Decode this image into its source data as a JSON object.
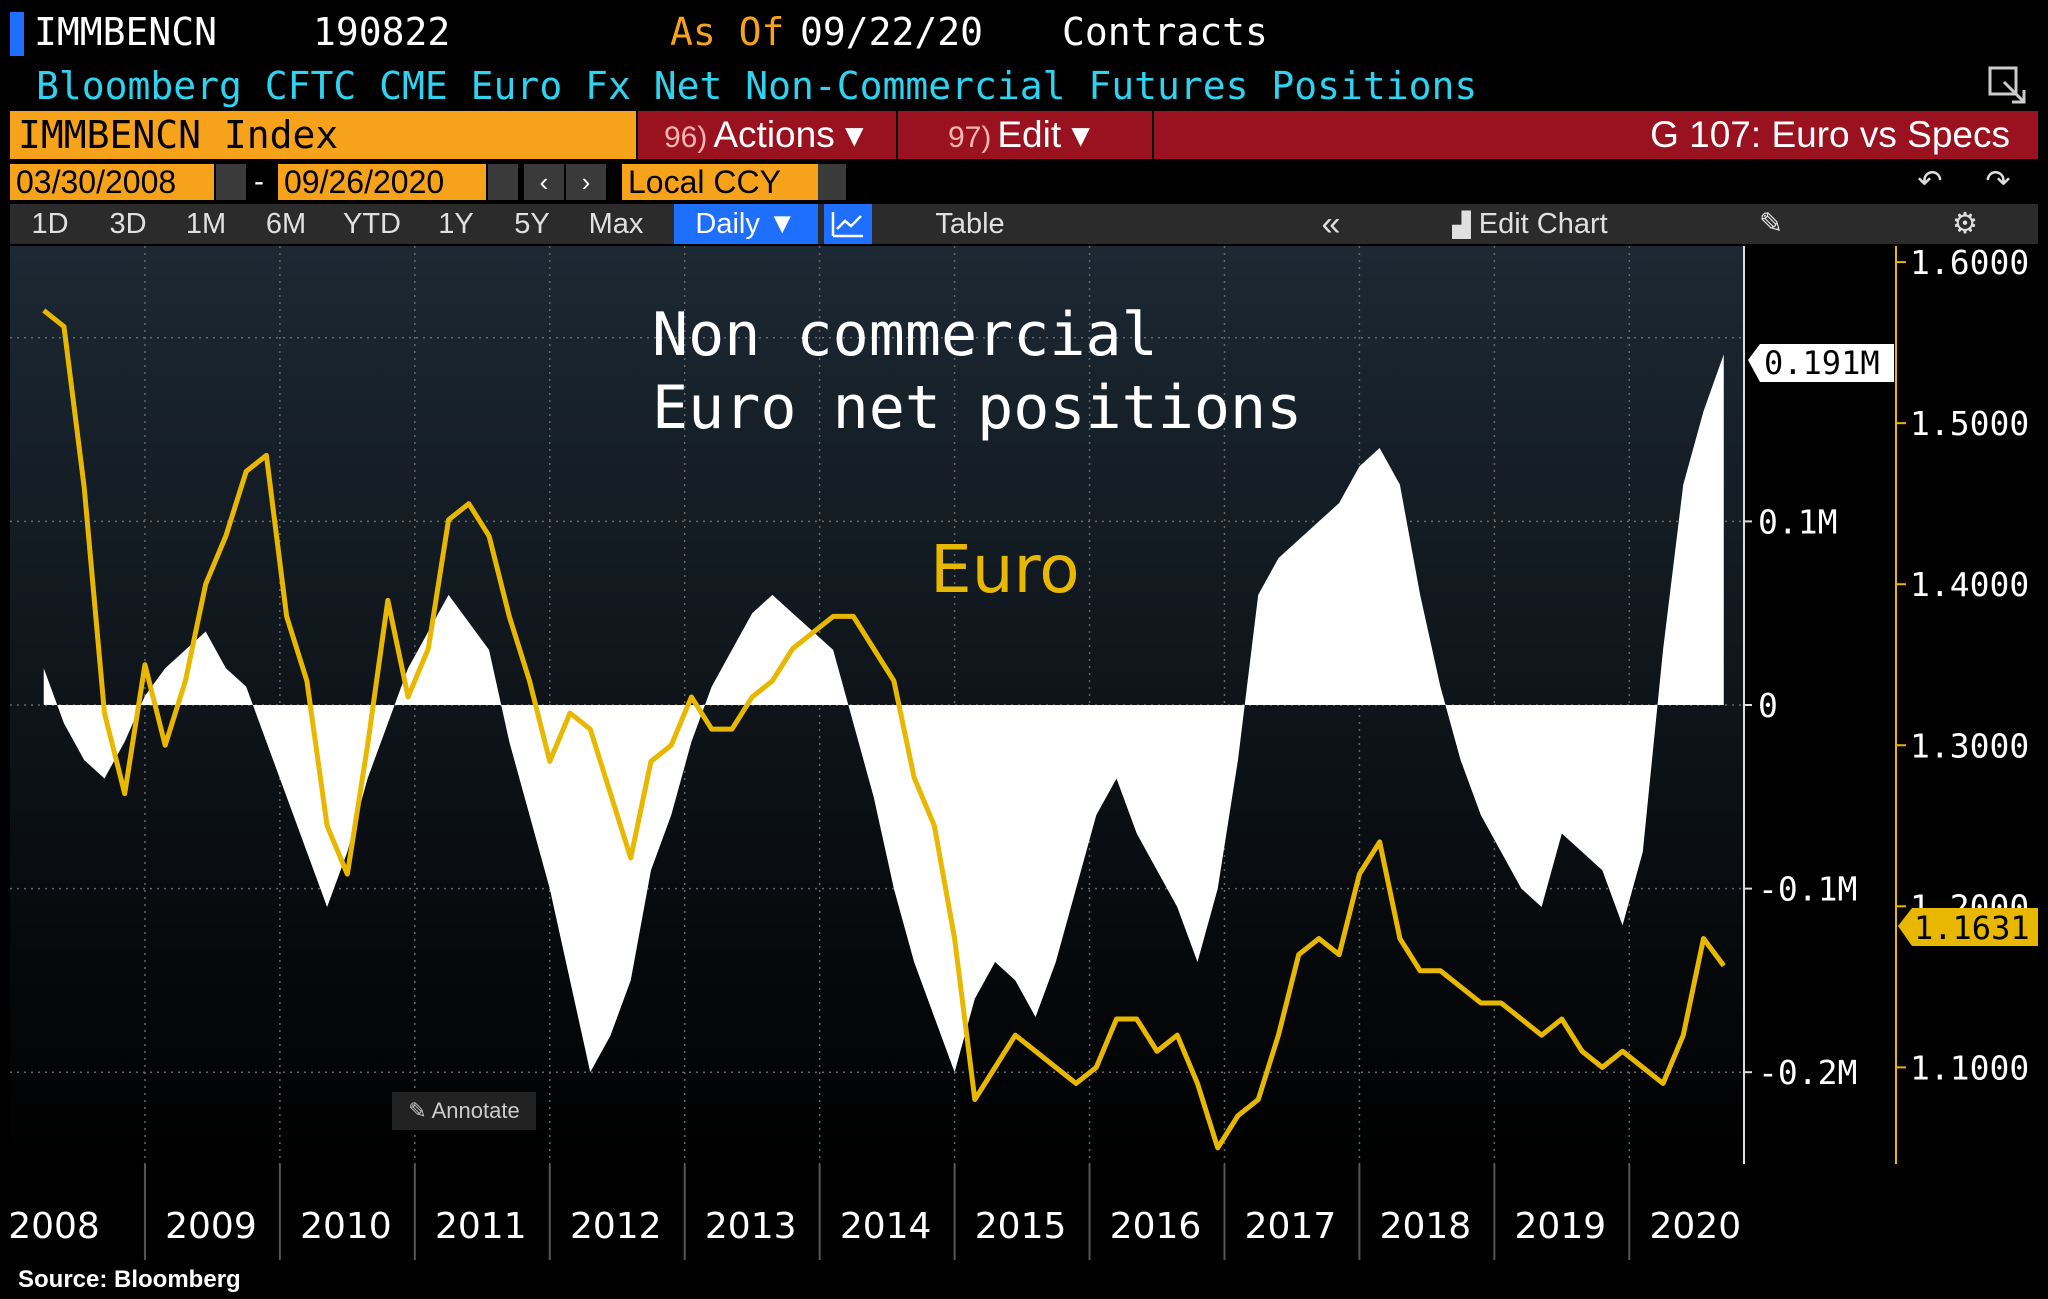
{
  "header": {
    "ticker": "IMMBENCN",
    "code": "190822",
    "as_of_label": "As Of",
    "as_of_date": "09/22/20",
    "units": "Contracts",
    "subtitle": "Bloomberg CFTC CME Euro Fx Net Non-Commercial Futures Positions"
  },
  "toolbar": {
    "index_field": "IMMBENCN Index",
    "actions_num": "96)",
    "actions_label": "Actions ▾",
    "edit_num": "97)",
    "edit_label": "Edit ▾",
    "chart_id": "G 107: Euro vs Specs"
  },
  "daterow": {
    "start": "03/30/2008",
    "dash": "-",
    "end": "09/26/2020",
    "currency": "Local CCY",
    "prev": "‹",
    "next": "›",
    "undo": "↶",
    "redo": "↷"
  },
  "ranges": {
    "r1d": "1D",
    "r3d": "3D",
    "r1m": "1M",
    "r6m": "6M",
    "ytd": "YTD",
    "r1y": "1Y",
    "r5y": "5Y",
    "max": "Max",
    "daily": "Daily ▼",
    "table": "Table",
    "collapse": "«",
    "edit_chart": "Edit Chart"
  },
  "annotate_label": "Annotate",
  "source": "Source: Bloomberg",
  "colors": {
    "euro": "#e8b800",
    "positions": "#ffffff",
    "accent": "#f7a21b",
    "bar_red": "#9a1220",
    "blue": "#1f6fff",
    "subtitle": "#2fd3f0"
  },
  "chart_data": {
    "type": "area",
    "annotations": [
      "Non commercial",
      "Euro net positions",
      "Euro"
    ],
    "x_labels": [
      "2008",
      "2009",
      "2010",
      "2011",
      "2012",
      "2013",
      "2014",
      "2015",
      "2016",
      "2017",
      "2018",
      "2019",
      "2020"
    ],
    "left_axis": {
      "label_ticks": [
        "0.1M",
        "0",
        "-0.1M",
        "-0.2M"
      ],
      "tick_values": [
        100000,
        0,
        -100000,
        -200000
      ],
      "ylim": [
        -250000,
        250000
      ]
    },
    "right_axis": {
      "label_ticks": [
        "1.6000",
        "1.5000",
        "1.4000",
        "1.3000",
        "1.2000",
        "1.1000"
      ],
      "tick_values": [
        1.6,
        1.5,
        1.4,
        1.3,
        1.2,
        1.1
      ],
      "ylim": [
        1.04,
        1.61
      ]
    },
    "last_values": {
      "positions_label": "0.191M",
      "euro_label": "1.1631"
    },
    "series": [
      {
        "name": "Euro net positions (contracts)",
        "type": "area",
        "x": [
          2008.25,
          2008.4,
          2008.55,
          2008.7,
          2008.85,
          2009.0,
          2009.15,
          2009.3,
          2009.45,
          2009.6,
          2009.75,
          2009.9,
          2010.05,
          2010.2,
          2010.35,
          2010.5,
          2010.65,
          2010.8,
          2010.95,
          2011.1,
          2011.25,
          2011.4,
          2011.55,
          2011.7,
          2011.85,
          2012.0,
          2012.15,
          2012.3,
          2012.45,
          2012.6,
          2012.75,
          2012.9,
          2013.05,
          2013.2,
          2013.35,
          2013.5,
          2013.65,
          2013.8,
          2013.95,
          2014.1,
          2014.25,
          2014.4,
          2014.55,
          2014.7,
          2014.85,
          2015.0,
          2015.15,
          2015.3,
          2015.45,
          2015.6,
          2015.75,
          2015.9,
          2016.05,
          2016.2,
          2016.35,
          2016.5,
          2016.65,
          2016.8,
          2016.95,
          2017.1,
          2017.25,
          2017.4,
          2017.55,
          2017.7,
          2017.85,
          2018.0,
          2018.15,
          2018.3,
          2018.45,
          2018.6,
          2018.75,
          2018.9,
          2019.05,
          2019.2,
          2019.35,
          2019.5,
          2019.65,
          2019.8,
          2019.95,
          2020.1,
          2020.25,
          2020.4,
          2020.55,
          2020.7
        ],
        "values": [
          20000,
          -10000,
          -30000,
          -40000,
          -20000,
          5000,
          20000,
          30000,
          40000,
          20000,
          10000,
          -20000,
          -50000,
          -80000,
          -110000,
          -80000,
          -40000,
          -10000,
          20000,
          40000,
          60000,
          45000,
          30000,
          -20000,
          -60000,
          -100000,
          -150000,
          -200000,
          -180000,
          -150000,
          -90000,
          -60000,
          -20000,
          10000,
          30000,
          50000,
          60000,
          50000,
          40000,
          30000,
          -10000,
          -50000,
          -100000,
          -140000,
          -170000,
          -200000,
          -160000,
          -140000,
          -150000,
          -170000,
          -140000,
          -100000,
          -60000,
          -40000,
          -70000,
          -90000,
          -110000,
          -140000,
          -100000,
          -30000,
          60000,
          80000,
          90000,
          100000,
          110000,
          130000,
          140000,
          120000,
          60000,
          10000,
          -30000,
          -60000,
          -80000,
          -100000,
          -110000,
          -70000,
          -80000,
          -90000,
          -120000,
          -80000,
          30000,
          120000,
          160000,
          191000
        ]
      },
      {
        "name": "Euro (EURUSD)",
        "type": "line",
        "x": [
          2008.25,
          2008.4,
          2008.55,
          2008.7,
          2008.85,
          2009.0,
          2009.15,
          2009.3,
          2009.45,
          2009.6,
          2009.75,
          2009.9,
          2010.05,
          2010.2,
          2010.35,
          2010.5,
          2010.65,
          2010.8,
          2010.95,
          2011.1,
          2011.25,
          2011.4,
          2011.55,
          2011.7,
          2011.85,
          2012.0,
          2012.15,
          2012.3,
          2012.45,
          2012.6,
          2012.75,
          2012.9,
          2013.05,
          2013.2,
          2013.35,
          2013.5,
          2013.65,
          2013.8,
          2013.95,
          2014.1,
          2014.25,
          2014.4,
          2014.55,
          2014.7,
          2014.85,
          2015.0,
          2015.15,
          2015.3,
          2015.45,
          2015.6,
          2015.75,
          2015.9,
          2016.05,
          2016.2,
          2016.35,
          2016.5,
          2016.65,
          2016.8,
          2016.95,
          2017.1,
          2017.25,
          2017.4,
          2017.55,
          2017.7,
          2017.85,
          2018.0,
          2018.15,
          2018.3,
          2018.45,
          2018.6,
          2018.75,
          2018.9,
          2019.05,
          2019.2,
          2019.35,
          2019.5,
          2019.65,
          2019.8,
          2019.95,
          2020.1,
          2020.25,
          2020.4,
          2020.55,
          2020.7
        ],
        "values": [
          1.57,
          1.56,
          1.46,
          1.32,
          1.27,
          1.35,
          1.3,
          1.34,
          1.4,
          1.43,
          1.47,
          1.48,
          1.38,
          1.34,
          1.25,
          1.22,
          1.3,
          1.39,
          1.33,
          1.36,
          1.44,
          1.45,
          1.43,
          1.38,
          1.34,
          1.29,
          1.32,
          1.31,
          1.27,
          1.23,
          1.29,
          1.3,
          1.33,
          1.31,
          1.31,
          1.33,
          1.34,
          1.36,
          1.37,
          1.38,
          1.38,
          1.36,
          1.34,
          1.28,
          1.25,
          1.18,
          1.08,
          1.1,
          1.12,
          1.11,
          1.1,
          1.09,
          1.1,
          1.13,
          1.13,
          1.11,
          1.12,
          1.09,
          1.05,
          1.07,
          1.08,
          1.12,
          1.17,
          1.18,
          1.17,
          1.22,
          1.24,
          1.18,
          1.16,
          1.16,
          1.15,
          1.14,
          1.14,
          1.13,
          1.12,
          1.13,
          1.11,
          1.1,
          1.11,
          1.1,
          1.09,
          1.12,
          1.18,
          1.1631
        ]
      }
    ]
  }
}
